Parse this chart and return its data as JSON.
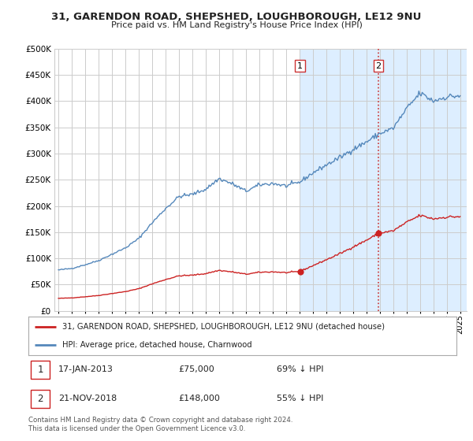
{
  "title": "31, GARENDON ROAD, SHEPSHED, LOUGHBOROUGH, LE12 9NU",
  "subtitle": "Price paid vs. HM Land Registry's House Price Index (HPI)",
  "hpi_color": "#5588bb",
  "price_color": "#cc2222",
  "vline_color": "#cc3333",
  "background_color": "#ffffff",
  "grid_color": "#cccccc",
  "highlight_color": "#ddeeff",
  "ylim": [
    0,
    500000
  ],
  "yticks": [
    0,
    50000,
    100000,
    150000,
    200000,
    250000,
    300000,
    350000,
    400000,
    450000,
    500000
  ],
  "ytick_labels": [
    "£0",
    "£50K",
    "£100K",
    "£150K",
    "£200K",
    "£250K",
    "£300K",
    "£350K",
    "£400K",
    "£450K",
    "£500K"
  ],
  "xlim_start": 1994.7,
  "xlim_end": 2025.5,
  "transaction1_date": 2013.04,
  "transaction1_price": 75000,
  "transaction2_date": 2018.9,
  "transaction2_price": 148000,
  "legend_line1": "31, GARENDON ROAD, SHEPSHED, LOUGHBOROUGH, LE12 9NU (detached house)",
  "legend_line2": "HPI: Average price, detached house, Charnwood",
  "footer": "Contains HM Land Registry data © Crown copyright and database right 2024.\nThis data is licensed under the Open Government Licence v3.0."
}
